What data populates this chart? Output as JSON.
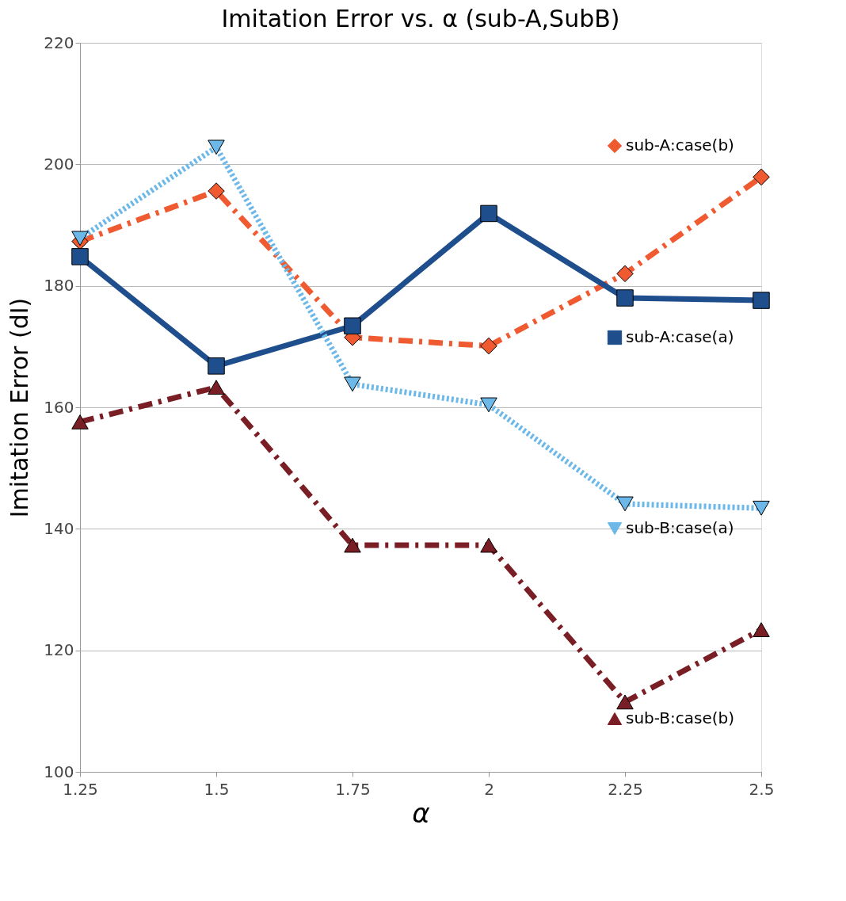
{
  "chart_data": {
    "type": "line",
    "title": "Imitation Error vs. α (sub-A,SubB)",
    "xlabel": "α",
    "ylabel": "Imitation Error (dI)",
    "x": [
      1.25,
      1.5,
      1.75,
      2,
      2.25,
      2.5
    ],
    "xlim": [
      1.25,
      2.5
    ],
    "xticks": [
      1.25,
      {
        "value": 1.5,
        "label": "1.5"
      },
      1.75,
      {
        "value": 2,
        "label": "2"
      },
      2.25,
      {
        "value": 2.5,
        "label": "2.5"
      }
    ],
    "ylim": [
      100,
      220
    ],
    "yticks": [
      100,
      120,
      140,
      160,
      180,
      200,
      220
    ],
    "grid": "y",
    "legend": "right",
    "series": [
      {
        "name": "sub-A:case(b)",
        "color": "#f05a30",
        "marker": "diamond",
        "line_style": "dashed",
        "values": [
          187.3,
          195.6,
          171.5,
          170.1,
          182,
          197.9
        ]
      },
      {
        "name": "sub-A:case(a)",
        "color": "#1f4e8c",
        "marker": "square",
        "line_style": "solid",
        "values": [
          184.8,
          166.8,
          173.4,
          191.9,
          178,
          177.6
        ]
      },
      {
        "name": "sub-B:case(a)",
        "color": "#6cb8e8",
        "marker": "triangle-down",
        "line_style": "dotted",
        "values": [
          187.8,
          202.8,
          163.8,
          160.4,
          144.1,
          143.4
        ]
      },
      {
        "name": "sub-B:case(b)",
        "color": "#7a1e25",
        "marker": "triangle",
        "line_style": "dashed",
        "values": [
          157.6,
          163.3,
          137.3,
          137.3,
          111.5,
          123.4
        ]
      }
    ]
  }
}
